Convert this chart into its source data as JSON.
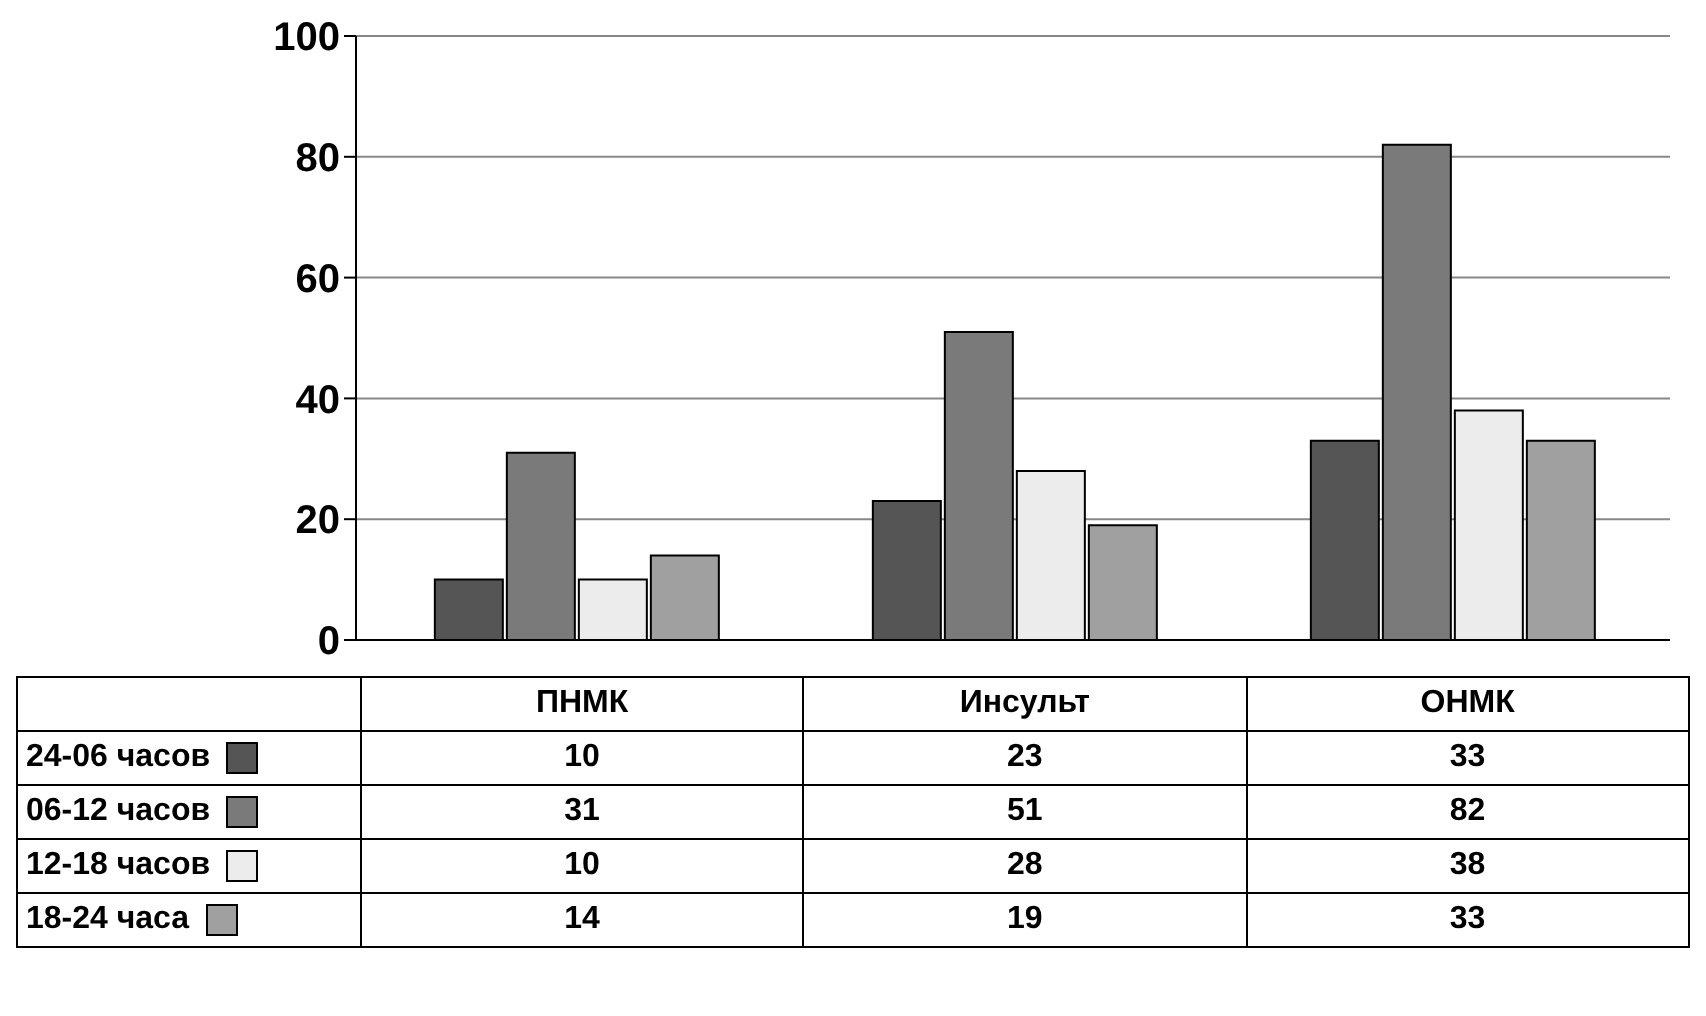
{
  "chart_data": {
    "type": "bar",
    "categories": [
      "ПНМК",
      "Инсульт",
      "ОНМК"
    ],
    "series": [
      {
        "name": "24-06 часов",
        "color": "#555555",
        "values": [
          10,
          23,
          33
        ]
      },
      {
        "name": "06-12 часов",
        "color": "#7a7a7a",
        "values": [
          31,
          51,
          82
        ]
      },
      {
        "name": "12-18 часов",
        "color": "#ececec",
        "values": [
          10,
          28,
          38
        ]
      },
      {
        "name": "18-24 часа",
        "color": "#a0a0a0",
        "values": [
          14,
          19,
          33
        ]
      }
    ],
    "ylim": [
      0,
      100
    ],
    "yticks": [
      0,
      20,
      40,
      60,
      80,
      100
    ],
    "grid": "y",
    "legend": "bottom",
    "data_labels": true
  }
}
